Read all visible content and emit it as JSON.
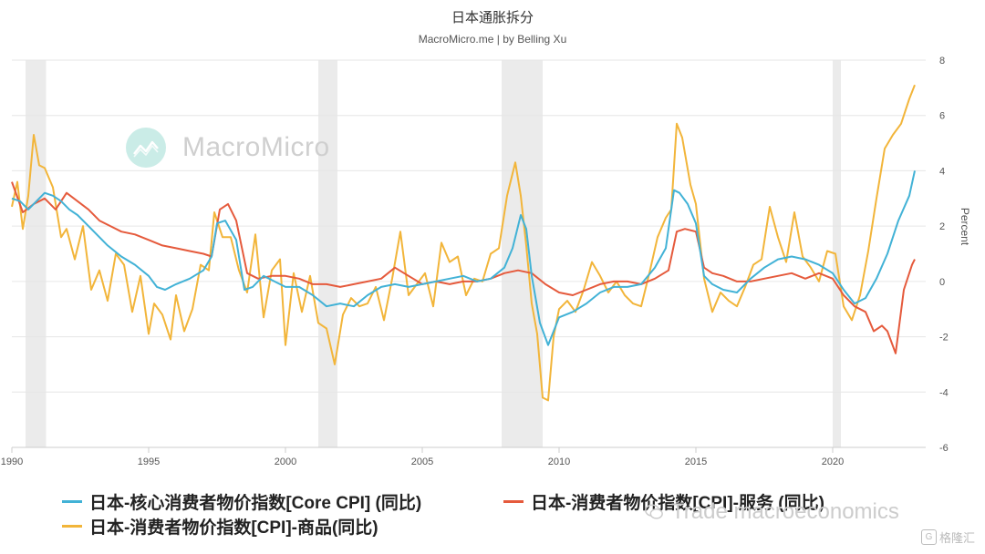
{
  "chart_data": {
    "type": "line",
    "title": "日本通胀拆分",
    "subtitle": "MacroMicro.me | by Belling Xu",
    "ylabel": "Percent",
    "xlabel": "",
    "ylim": [
      -6,
      8
    ],
    "xlim": [
      1990,
      2023.4
    ],
    "yticks": [
      -6,
      -4,
      -2,
      0,
      2,
      4,
      6,
      8
    ],
    "xticks": [
      1990,
      1995,
      2000,
      2005,
      2010,
      2015,
      2020
    ],
    "grid": "horizontal",
    "legend_position": "bottom",
    "recessions": [
      [
        1990.5,
        1991.25
      ],
      [
        2001.2,
        2001.9
      ],
      [
        2007.9,
        2009.4
      ],
      [
        2020.0,
        2020.3
      ]
    ],
    "series": [
      {
        "name": "日本-核心消费者物价指数[Core CPI] (同比)",
        "color": "#42b2d6",
        "x": [
          1990.0,
          1990.3,
          1990.6,
          1990.9,
          1991.2,
          1991.5,
          1991.8,
          1992.1,
          1992.4,
          1992.7,
          1993.0,
          1993.5,
          1994.0,
          1994.5,
          1995.0,
          1995.3,
          1995.6,
          1996.0,
          1996.5,
          1997.0,
          1997.3,
          1997.5,
          1997.8,
          1998.2,
          1998.5,
          1998.8,
          1999.2,
          1999.6,
          2000.0,
          2000.5,
          2001.0,
          2001.5,
          2002.0,
          2002.5,
          2003.0,
          2003.5,
          2004.0,
          2004.5,
          2005.0,
          2005.5,
          2006.0,
          2006.5,
          2007.0,
          2007.5,
          2008.0,
          2008.3,
          2008.6,
          2008.8,
          2009.0,
          2009.3,
          2009.6,
          2009.8,
          2010.0,
          2010.5,
          2011.0,
          2011.5,
          2012.0,
          2012.5,
          2013.0,
          2013.5,
          2013.9,
          2014.2,
          2014.4,
          2014.7,
          2015.0,
          2015.3,
          2015.6,
          2016.0,
          2016.5,
          2017.0,
          2017.5,
          2018.0,
          2018.5,
          2019.0,
          2019.5,
          2020.0,
          2020.4,
          2020.8,
          2021.2,
          2021.6,
          2022.0,
          2022.4,
          2022.8,
          2023.0
        ],
        "values": [
          3.0,
          2.9,
          2.6,
          2.9,
          3.2,
          3.1,
          2.9,
          2.6,
          2.4,
          2.1,
          1.8,
          1.3,
          0.9,
          0.6,
          0.2,
          -0.2,
          -0.3,
          -0.1,
          0.1,
          0.4,
          0.9,
          2.1,
          2.2,
          1.5,
          -0.3,
          -0.2,
          0.2,
          0.0,
          -0.2,
          -0.2,
          -0.5,
          -0.9,
          -0.8,
          -0.9,
          -0.5,
          -0.2,
          -0.1,
          -0.2,
          -0.1,
          0.0,
          0.1,
          0.2,
          0.0,
          0.1,
          0.5,
          1.2,
          2.4,
          1.9,
          0.2,
          -1.5,
          -2.3,
          -1.8,
          -1.3,
          -1.1,
          -0.8,
          -0.4,
          -0.2,
          -0.2,
          -0.1,
          0.5,
          1.2,
          3.3,
          3.2,
          2.8,
          2.1,
          0.2,
          -0.1,
          -0.3,
          -0.4,
          0.1,
          0.5,
          0.8,
          0.9,
          0.8,
          0.6,
          0.3,
          -0.3,
          -0.8,
          -0.6,
          0.1,
          1.0,
          2.2,
          3.1,
          4.0
        ]
      },
      {
        "name": "日本-消费者物价指数[CPI]-服务 (同比)",
        "color": "#e55a3c",
        "x": [
          1990.0,
          1990.4,
          1990.8,
          1991.2,
          1991.6,
          1992.0,
          1992.4,
          1992.8,
          1993.2,
          1993.6,
          1994.0,
          1994.5,
          1995.0,
          1995.5,
          1996.0,
          1996.5,
          1997.0,
          1997.3,
          1997.6,
          1997.9,
          1998.2,
          1998.6,
          1999.0,
          1999.5,
          2000.0,
          2000.5,
          2001.0,
          2001.5,
          2002.0,
          2002.5,
          2003.0,
          2003.5,
          2004.0,
          2004.5,
          2005.0,
          2005.5,
          2006.0,
          2006.5,
          2007.0,
          2007.5,
          2008.0,
          2008.5,
          2009.0,
          2009.5,
          2010.0,
          2010.5,
          2011.0,
          2011.5,
          2012.0,
          2012.5,
          2013.0,
          2013.5,
          2014.0,
          2014.3,
          2014.6,
          2015.0,
          2015.3,
          2015.6,
          2016.0,
          2016.5,
          2017.0,
          2017.5,
          2018.0,
          2018.5,
          2019.0,
          2019.5,
          2020.0,
          2020.4,
          2020.8,
          2021.2,
          2021.5,
          2021.8,
          2022.0,
          2022.3,
          2022.6,
          2022.9,
          2023.0
        ],
        "values": [
          3.6,
          2.5,
          2.8,
          3.0,
          2.6,
          3.2,
          2.9,
          2.6,
          2.2,
          2.0,
          1.8,
          1.7,
          1.5,
          1.3,
          1.2,
          1.1,
          1.0,
          0.9,
          2.6,
          2.8,
          2.2,
          0.3,
          0.1,
          0.2,
          0.2,
          0.1,
          -0.1,
          -0.1,
          -0.2,
          -0.1,
          0.0,
          0.1,
          0.5,
          0.2,
          -0.1,
          0.0,
          -0.1,
          0.0,
          0.0,
          0.1,
          0.3,
          0.4,
          0.3,
          -0.1,
          -0.4,
          -0.5,
          -0.3,
          -0.1,
          0.0,
          0.0,
          -0.1,
          0.1,
          0.4,
          1.8,
          1.9,
          1.8,
          0.5,
          0.3,
          0.2,
          0.0,
          0.0,
          0.1,
          0.2,
          0.3,
          0.1,
          0.3,
          0.1,
          -0.5,
          -0.9,
          -1.1,
          -1.8,
          -1.6,
          -1.8,
          -2.6,
          -0.3,
          0.6,
          0.8
        ]
      },
      {
        "name": "日本-消费者物价指数[CPI]-商品(同比)",
        "color": "#f2b53a",
        "x": [
          1990.0,
          1990.2,
          1990.4,
          1990.6,
          1990.8,
          1991.0,
          1991.2,
          1991.5,
          1991.8,
          1992.0,
          1992.3,
          1992.6,
          1992.9,
          1993.2,
          1993.5,
          1993.8,
          1994.1,
          1994.4,
          1994.7,
          1995.0,
          1995.2,
          1995.5,
          1995.8,
          1996.0,
          1996.3,
          1996.6,
          1996.9,
          1997.2,
          1997.4,
          1997.7,
          1998.0,
          1998.3,
          1998.6,
          1998.9,
          1999.2,
          1999.5,
          1999.8,
          2000.0,
          2000.3,
          2000.6,
          2000.9,
          2001.2,
          2001.5,
          2001.8,
          2002.1,
          2002.4,
          2002.7,
          2003.0,
          2003.3,
          2003.6,
          2003.9,
          2004.2,
          2004.5,
          2004.8,
          2005.1,
          2005.4,
          2005.7,
          2006.0,
          2006.3,
          2006.6,
          2006.9,
          2007.2,
          2007.5,
          2007.8,
          2008.1,
          2008.4,
          2008.6,
          2008.8,
          2009.0,
          2009.2,
          2009.4,
          2009.6,
          2009.8,
          2010.0,
          2010.3,
          2010.6,
          2010.9,
          2011.2,
          2011.5,
          2011.8,
          2012.1,
          2012.4,
          2012.7,
          2013.0,
          2013.3,
          2013.6,
          2013.9,
          2014.1,
          2014.3,
          2014.5,
          2014.8,
          2015.0,
          2015.3,
          2015.6,
          2015.9,
          2016.2,
          2016.5,
          2016.8,
          2017.1,
          2017.4,
          2017.7,
          2018.0,
          2018.3,
          2018.6,
          2018.9,
          2019.2,
          2019.5,
          2019.8,
          2020.1,
          2020.4,
          2020.7,
          2021.0,
          2021.3,
          2021.6,
          2021.9,
          2022.2,
          2022.5,
          2022.8,
          2023.0
        ],
        "values": [
          2.7,
          3.6,
          1.9,
          3.1,
          5.3,
          4.2,
          4.1,
          3.4,
          1.6,
          1.9,
          0.8,
          2.0,
          -0.3,
          0.4,
          -0.7,
          1.0,
          0.6,
          -1.1,
          0.2,
          -1.9,
          -0.8,
          -1.2,
          -2.1,
          -0.5,
          -1.8,
          -1.0,
          0.6,
          0.4,
          2.5,
          1.6,
          1.6,
          0.4,
          -0.4,
          1.7,
          -1.3,
          0.4,
          0.8,
          -2.3,
          0.3,
          -1.1,
          0.2,
          -1.5,
          -1.7,
          -3.0,
          -1.2,
          -0.6,
          -0.9,
          -0.8,
          -0.2,
          -1.4,
          0.1,
          1.8,
          -0.5,
          -0.1,
          0.3,
          -0.9,
          1.4,
          0.7,
          0.9,
          -0.5,
          0.1,
          0.0,
          1.0,
          1.2,
          3.1,
          4.3,
          3.1,
          1.3,
          -0.8,
          -1.9,
          -4.2,
          -4.3,
          -2.0,
          -1.0,
          -0.7,
          -1.1,
          -0.3,
          0.7,
          0.2,
          -0.4,
          0.0,
          -0.5,
          -0.8,
          -0.9,
          0.3,
          1.6,
          2.3,
          2.6,
          5.7,
          5.2,
          3.5,
          2.8,
          0.1,
          -1.1,
          -0.4,
          -0.7,
          -0.9,
          -0.2,
          0.6,
          0.8,
          2.7,
          1.6,
          0.7,
          2.5,
          0.9,
          0.5,
          0.0,
          1.1,
          1.0,
          -0.9,
          -1.4,
          -0.5,
          1.1,
          3.0,
          4.8,
          5.3,
          5.7,
          6.6,
          7.1
        ]
      }
    ]
  },
  "watermark": {
    "brand_text": "MacroMicro",
    "wechat_text": "Trade macroeconomics",
    "corner_text": "格隆汇",
    "corner_icon_letter": "G"
  }
}
